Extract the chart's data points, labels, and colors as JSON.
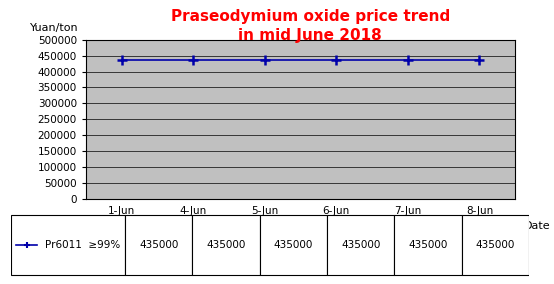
{
  "title_line1": "Praseodymium oxide price trend",
  "title_line2": "in mid June 2018",
  "title_color": "#FF0000",
  "ylabel": "Yuan/ton",
  "xlabel": "Date",
  "x_labels": [
    "1-Jun",
    "4-Jun",
    "5-Jun",
    "6-Jun",
    "7-Jun",
    "8-Jun"
  ],
  "y_values": [
    435000,
    435000,
    435000,
    435000,
    435000,
    435000
  ],
  "ylim": [
    0,
    500000
  ],
  "yticks": [
    0,
    50000,
    100000,
    150000,
    200000,
    250000,
    300000,
    350000,
    400000,
    450000,
    500000
  ],
  "line_color": "#0000AA",
  "marker": "+",
  "marker_color": "#0000AA",
  "bg_color": "#C0C0C0",
  "legend_label": "Pr6011  ≥99%",
  "table_values": [
    "435000",
    "435000",
    "435000",
    "435000",
    "435000",
    "435000"
  ],
  "fig_bg_color": "#FFFFFF",
  "title_fontsize": 11,
  "tick_fontsize": 7.5,
  "ylabel_fontsize": 8,
  "xlabel_fontsize": 8
}
